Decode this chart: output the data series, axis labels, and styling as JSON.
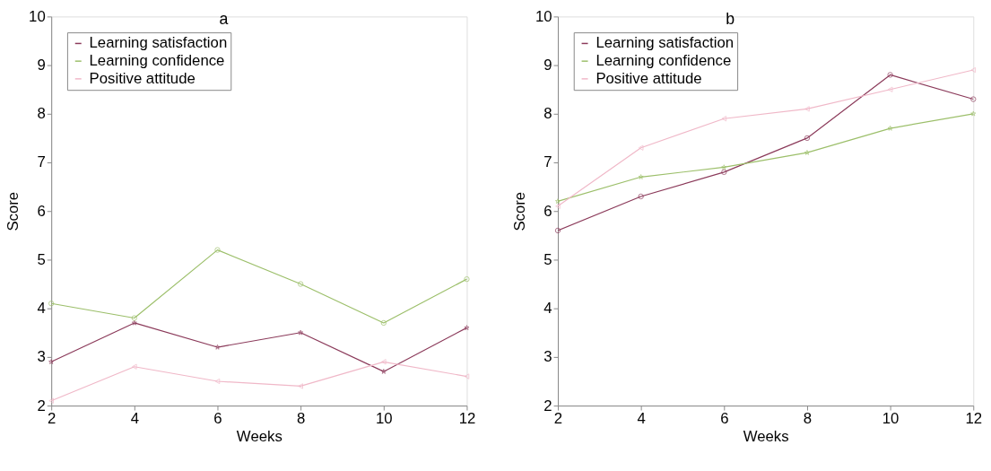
{
  "chart_data": [
    {
      "type": "line",
      "title": "a",
      "xlabel": "Weeks",
      "ylabel": "Score",
      "x": [
        2,
        4,
        6,
        8,
        10,
        12
      ],
      "xlim": [
        2,
        12
      ],
      "xticks": [
        2,
        4,
        6,
        8,
        10,
        12
      ],
      "ylim": [
        2,
        10
      ],
      "yticks": [
        2,
        3,
        4,
        5,
        6,
        7,
        8,
        9,
        10
      ],
      "grid": false,
      "legend": "top left",
      "line_style": "solid",
      "series": [
        {
          "name": "Learning satisfaction",
          "color": "#8b3a5a",
          "marker": "star",
          "values": [
            2.9,
            3.7,
            3.2,
            3.5,
            2.7,
            3.6
          ]
        },
        {
          "name": "Learning confidence",
          "color": "#9cbf6a",
          "marker": "circle",
          "values": [
            4.1,
            3.8,
            5.2,
            4.5,
            3.7,
            4.6
          ]
        },
        {
          "name": "Positive attitude",
          "color": "#f0b8c8",
          "marker": "triangle",
          "values": [
            2.1,
            2.8,
            2.5,
            2.4,
            2.9,
            2.6
          ]
        }
      ]
    },
    {
      "type": "line",
      "title": "b",
      "xlabel": "Weeks",
      "ylabel": "Score",
      "x": [
        2,
        4,
        6,
        8,
        10,
        12
      ],
      "xlim": [
        2,
        12
      ],
      "xticks": [
        2,
        4,
        6,
        8,
        10,
        12
      ],
      "ylim": [
        2,
        10
      ],
      "yticks": [
        2,
        3,
        4,
        5,
        6,
        7,
        8,
        9,
        10
      ],
      "grid": false,
      "legend": "top left",
      "line_style": "solid",
      "series": [
        {
          "name": "Learning satisfaction",
          "color": "#8b3a5a",
          "marker": "circle",
          "values": [
            5.6,
            6.3,
            6.8,
            7.5,
            8.8,
            8.3
          ]
        },
        {
          "name": "Learning confidence",
          "color": "#9cbf6a",
          "marker": "star",
          "values": [
            6.2,
            6.7,
            6.9,
            7.2,
            7.7,
            8.0
          ]
        },
        {
          "name": "Positive attitude",
          "color": "#f0b8c8",
          "marker": "triangle",
          "values": [
            6.1,
            7.3,
            7.9,
            8.1,
            8.5,
            8.9
          ]
        }
      ]
    }
  ]
}
